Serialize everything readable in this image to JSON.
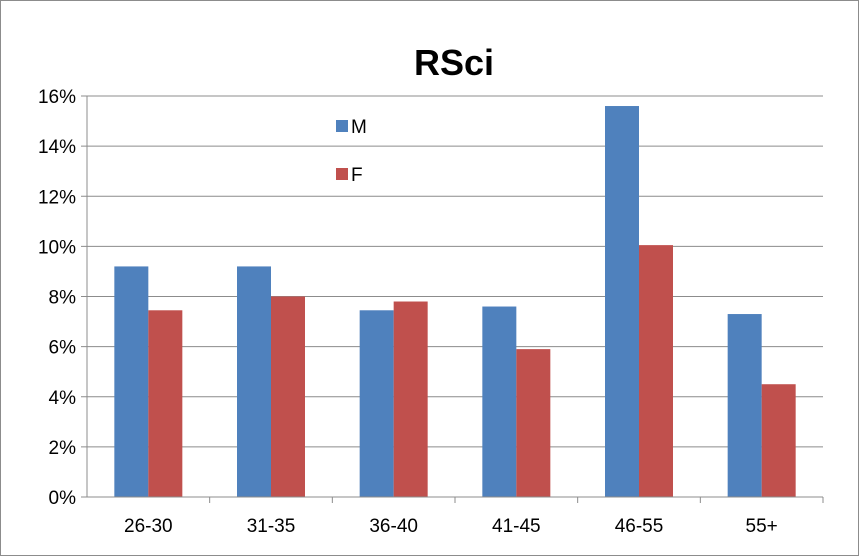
{
  "chart_data": {
    "type": "bar",
    "title": "RSci",
    "categories": [
      "26-30",
      "31-35",
      "36-40",
      "41-45",
      "46-55",
      "55+"
    ],
    "series": [
      {
        "name": "M",
        "color": "#4f81bd",
        "values": [
          9.2,
          9.2,
          7.45,
          7.6,
          15.6,
          7.3
        ]
      },
      {
        "name": "F",
        "color": "#c0504d",
        "values": [
          7.45,
          8.0,
          7.8,
          5.9,
          10.05,
          4.5
        ]
      }
    ],
    "ylim": [
      0,
      16
    ],
    "ytick_labels": [
      "0%",
      "2%",
      "4%",
      "6%",
      "8%",
      "10%",
      "12%",
      "14%",
      "16%"
    ],
    "grid": true,
    "legend_position": "top-center"
  }
}
